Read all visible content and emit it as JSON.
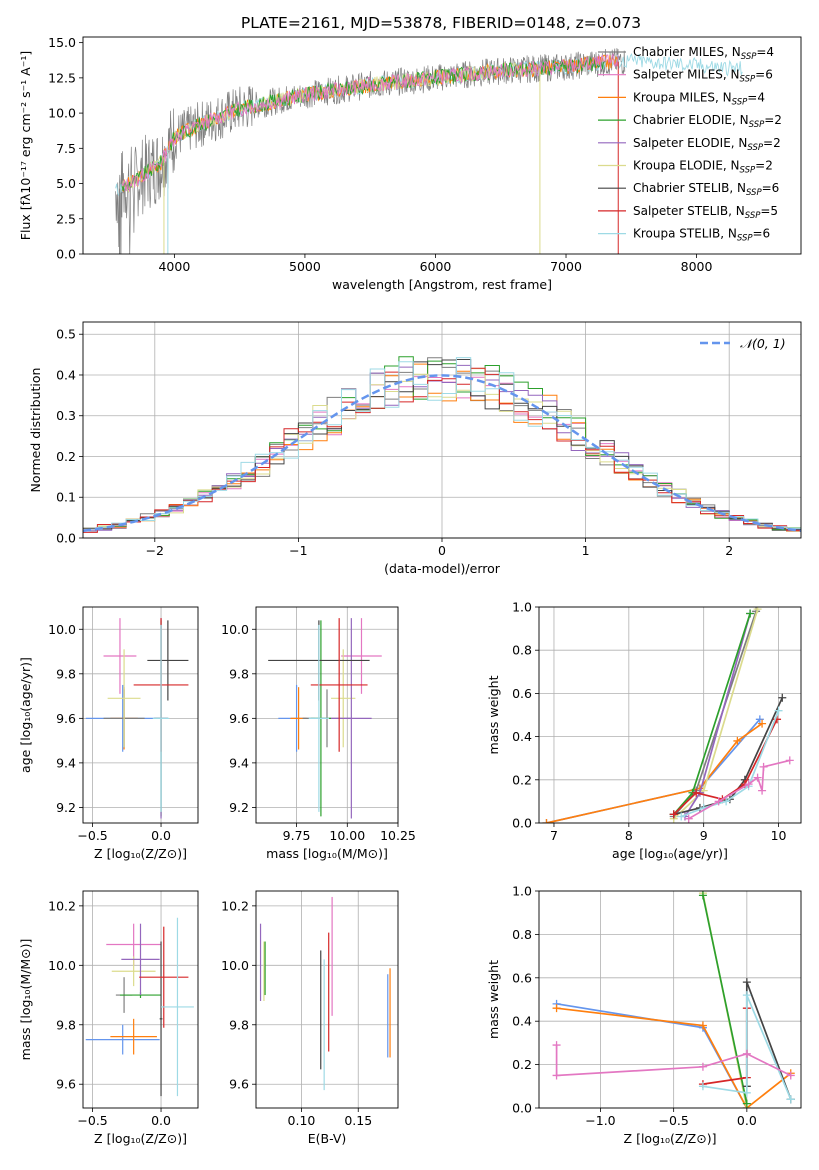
{
  "figure_title": "PLATE=2161, MJD=53878, FIBERID=0148, z=0.073",
  "model_colors": [
    "#7f7f7f",
    "#e377c2",
    "#ff7f0e",
    "#2ca02c",
    "#9467bd",
    "#dbdb8d",
    "#444444",
    "#d62728",
    "#9edae5"
  ],
  "chart_data": [
    {
      "id": "spectrum",
      "type": "line",
      "title": "PLATE=2161, MJD=53878, FIBERID=0148, z=0.073",
      "xlabel": "wavelength [Angstrom, rest frame]",
      "ylabel": "Flux [fλ10⁻¹⁷ erg cm⁻² s⁻¹ A⁻¹]",
      "xlim": [
        3300,
        8800
      ],
      "ylim": [
        0,
        15.4
      ],
      "xticks": [
        4000,
        5000,
        6000,
        7000,
        8000
      ],
      "yticks": [
        0.0,
        2.5,
        5.0,
        7.5,
        10.0,
        12.5,
        15.0
      ],
      "legend_position": "upper-right",
      "legend": [
        {
          "label": "Chabrier MILES, N",
          "sub": "SSP",
          "tail": "=4",
          "color": "#7f7f7f"
        },
        {
          "label": "Salpeter MILES, N",
          "sub": "SSP",
          "tail": "=6",
          "color": "#e377c2"
        },
        {
          "label": "Kroupa MILES, N",
          "sub": "SSP",
          "tail": "=4",
          "color": "#ff7f0e"
        },
        {
          "label": "Chabrier ELODIE, N",
          "sub": "SSP",
          "tail": "=2",
          "color": "#2ca02c"
        },
        {
          "label": "Salpeter ELODIE, N",
          "sub": "SSP",
          "tail": "=2",
          "color": "#9467bd"
        },
        {
          "label": "Kroupa ELODIE, N",
          "sub": "SSP",
          "tail": "=2",
          "color": "#dbdb8d"
        },
        {
          "label": "Chabrier STELIB, N",
          "sub": "SSP",
          "tail": "=6",
          "color": "#444444"
        },
        {
          "label": "Salpeter STELIB, N",
          "sub": "SSP",
          "tail": "=5",
          "color": "#d62728"
        },
        {
          "label": "Kroupa STELIB, N",
          "sub": "SSP",
          "tail": "=6",
          "color": "#9edae5"
        }
      ],
      "data_trend": {
        "x": [
          3550,
          3700,
          3900,
          4000,
          4200,
          4500,
          5000,
          5500,
          6000,
          6500,
          7000,
          7300,
          7500,
          7800,
          8100,
          8400,
          8800
        ],
        "y": [
          4.5,
          5.2,
          6.5,
          8.3,
          9.2,
          10.3,
          11.3,
          12.0,
          12.5,
          13.0,
          13.3,
          13.6,
          13.7,
          13.5,
          13.3,
          13.1,
          13.0
        ]
      }
    },
    {
      "id": "residuals",
      "type": "histogram",
      "xlabel": "(data-model)/error",
      "ylabel": "Normed distribution",
      "xlim": [
        -2.5,
        2.5
      ],
      "ylim": [
        0,
        0.53
      ],
      "xticks": [
        -2,
        -1,
        0,
        1,
        2
      ],
      "yticks": [
        0.0,
        0.1,
        0.2,
        0.3,
        0.4,
        0.5
      ],
      "legend_position": "upper-right",
      "reference_curve": {
        "label": "𝒩(0, 1)",
        "mean": 0,
        "sigma": 1,
        "color": "#6495ed"
      },
      "bin_width": 0.1
    },
    {
      "id": "age_vs_Z",
      "type": "errorbar",
      "xlabel": "Z [log₁₀(Z/Z⊙)]",
      "ylabel": "age  [log₁₀(age/yr)]",
      "xlim": [
        -0.57,
        0.27
      ],
      "ylim": [
        9.13,
        10.1
      ],
      "xticks": [
        -0.5,
        0.0
      ],
      "xticklabels": [
        "−0.5",
        "0.0"
      ],
      "yticks": [
        9.2,
        9.4,
        9.6,
        9.8,
        10.0
      ],
      "points": [
        {
          "x": -0.28,
          "y": 9.6,
          "xerr": 0.27,
          "yerr": 0.15,
          "color": "#6495ed"
        },
        {
          "x": -0.27,
          "y": 9.6,
          "xerr": 0.1,
          "yerr": 0.14,
          "color": "#ff7f0e"
        },
        {
          "x": -0.3,
          "y": 9.88,
          "xerr": 0.12,
          "yerr": 0.17,
          "color": "#e377c2"
        },
        {
          "x": -0.27,
          "y": 9.6,
          "xerr": 0.15,
          "yerr": 0.13,
          "color": "#7f7f7f"
        },
        {
          "x": -0.27,
          "y": 9.69,
          "xerr": 0.12,
          "yerr": 0.22,
          "color": "#dbdb8d"
        },
        {
          "x": 0.0,
          "y": 9.6,
          "xerr": 0.05,
          "yerr": 0.44,
          "color": "#2ca02c"
        },
        {
          "x": 0.0,
          "y": 9.6,
          "xerr": 0.05,
          "yerr": 0.45,
          "color": "#9467bd"
        },
        {
          "x": 0.05,
          "y": 9.86,
          "xerr": 0.15,
          "yerr": 0.18,
          "color": "#444444"
        },
        {
          "x": 0.0,
          "y": 9.75,
          "xerr": 0.2,
          "yerr": 0.3,
          "color": "#d62728"
        },
        {
          "x": 0.0,
          "y": 9.6,
          "xerr": 0.06,
          "yerr": 0.42,
          "color": "#9edae5"
        }
      ]
    },
    {
      "id": "age_vs_mass",
      "type": "errorbar",
      "xlabel": "mass [log₁₀(M/M⊙)]",
      "ylabel": "",
      "xlim": [
        9.55,
        10.25
      ],
      "ylim": [
        9.13,
        10.1
      ],
      "xticks": [
        9.75,
        10.0,
        10.25
      ],
      "xticklabels": [
        "9.75",
        "10.00",
        "10.25"
      ],
      "yticks": [
        9.2,
        9.4,
        9.6,
        9.8,
        10.0
      ],
      "points": [
        {
          "x": 9.75,
          "y": 9.6,
          "xerr": 0.09,
          "yerr": 0.15,
          "color": "#6495ed"
        },
        {
          "x": 9.76,
          "y": 9.6,
          "xerr": 0.04,
          "yerr": 0.14,
          "color": "#ff7f0e"
        },
        {
          "x": 10.07,
          "y": 9.88,
          "xerr": 0.1,
          "yerr": 0.17,
          "color": "#e377c2"
        },
        {
          "x": 9.9,
          "y": 9.6,
          "xerr": 0.12,
          "yerr": 0.13,
          "color": "#7f7f7f"
        },
        {
          "x": 9.98,
          "y": 9.69,
          "xerr": 0.06,
          "yerr": 0.22,
          "color": "#dbdb8d"
        },
        {
          "x": 9.87,
          "y": 9.6,
          "xerr": 0.05,
          "yerr": 0.44,
          "color": "#2ca02c"
        },
        {
          "x": 10.02,
          "y": 9.6,
          "xerr": 0.1,
          "yerr": 0.45,
          "color": "#9467bd"
        },
        {
          "x": 9.86,
          "y": 9.86,
          "xerr": 0.25,
          "yerr": 0.18,
          "color": "#444444"
        },
        {
          "x": 9.96,
          "y": 9.75,
          "xerr": 0.14,
          "yerr": 0.3,
          "color": "#d62728"
        },
        {
          "x": 9.86,
          "y": 9.6,
          "xerr": 0.05,
          "yerr": 0.42,
          "color": "#9edae5"
        }
      ]
    },
    {
      "id": "massweight_vs_age",
      "type": "line",
      "xlabel": "age  [log₁₀(age/yr)]",
      "ylabel": "mass weight",
      "xlim": [
        6.8,
        10.3
      ],
      "ylim": [
        0,
        1
      ],
      "xticks": [
        7,
        8,
        9,
        10
      ],
      "yticks": [
        0.0,
        0.2,
        0.4,
        0.6,
        0.8,
        1.0
      ],
      "series": [
        {
          "color": "#6495ed",
          "x": [
            6.9,
            8.95,
            9.75
          ],
          "y": [
            0.0,
            0.16,
            0.48
          ]
        },
        {
          "color": "#ff7f0e",
          "x": [
            6.9,
            8.95,
            9.45,
            9.78
          ],
          "y": [
            0.0,
            0.16,
            0.38,
            0.46
          ]
        },
        {
          "color": "#7f7f7f",
          "x": [
            8.6,
            8.9,
            9.7
          ],
          "y": [
            0.03,
            0.15,
            0.98
          ]
        },
        {
          "color": "#dbdb8d",
          "x": [
            8.6,
            9.0,
            9.72
          ],
          "y": [
            0.02,
            0.15,
            0.99
          ]
        },
        {
          "color": "#9467bd",
          "x": [
            8.75,
            8.95,
            9.62
          ],
          "y": [
            0.03,
            0.14,
            0.97
          ]
        },
        {
          "color": "#2ca02c",
          "x": [
            8.6,
            8.85,
            9.62
          ],
          "y": [
            0.04,
            0.14,
            0.97
          ]
        },
        {
          "color": "#444444",
          "x": [
            8.6,
            8.95,
            9.35,
            9.55,
            10.05
          ],
          "y": [
            0.04,
            0.07,
            0.11,
            0.2,
            0.58
          ]
        },
        {
          "color": "#d62728",
          "x": [
            8.6,
            8.9,
            9.25,
            9.55,
            9.98
          ],
          "y": [
            0.04,
            0.14,
            0.11,
            0.18,
            0.48
          ]
        },
        {
          "color": "#9edae5",
          "x": [
            8.7,
            9.0,
            9.3,
            9.6,
            10.0
          ],
          "y": [
            0.03,
            0.07,
            0.1,
            0.17,
            0.52
          ]
        },
        {
          "color": "#e377c2",
          "x": [
            8.8,
            9.2,
            9.6,
            9.72,
            9.78,
            9.8,
            10.15
          ],
          "y": [
            0.02,
            0.1,
            0.18,
            0.21,
            0.15,
            0.26,
            0.29
          ]
        }
      ]
    },
    {
      "id": "mass_vs_Z",
      "type": "errorbar",
      "xlabel": "Z [log₁₀(Z/Z⊙)]",
      "ylabel": "mass [log₁₀(M/M⊙)]",
      "xlim": [
        -0.57,
        0.27
      ],
      "ylim": [
        9.52,
        10.25
      ],
      "xticks": [
        -0.5,
        0.0
      ],
      "xticklabels": [
        "−0.5",
        "0.0"
      ],
      "yticks": [
        9.6,
        9.8,
        10.0,
        10.2
      ],
      "points": [
        {
          "x": -0.28,
          "y": 9.75,
          "xerr": 0.27,
          "yerr": 0.05,
          "color": "#6495ed"
        },
        {
          "x": -0.2,
          "y": 9.76,
          "xerr": 0.17,
          "yerr": 0.06,
          "color": "#ff7f0e"
        },
        {
          "x": -0.2,
          "y": 10.07,
          "xerr": 0.2,
          "yerr": 0.07,
          "color": "#e377c2"
        },
        {
          "x": -0.27,
          "y": 9.9,
          "xerr": 0.06,
          "yerr": 0.06,
          "color": "#7f7f7f"
        },
        {
          "x": -0.2,
          "y": 9.98,
          "xerr": 0.16,
          "yerr": 0.05,
          "color": "#dbdb8d"
        },
        {
          "x": -0.15,
          "y": 9.9,
          "xerr": 0.15,
          "yerr": 0.01,
          "color": "#2ca02c"
        },
        {
          "x": -0.15,
          "y": 10.02,
          "xerr": 0.14,
          "yerr": 0.12,
          "color": "#9467bd"
        },
        {
          "x": 0.0,
          "y": 9.82,
          "xerr": 0.01,
          "yerr": 0.26,
          "color": "#444444"
        },
        {
          "x": 0.02,
          "y": 9.96,
          "xerr": 0.18,
          "yerr": 0.17,
          "color": "#d62728"
        },
        {
          "x": 0.12,
          "y": 9.86,
          "xerr": 0.12,
          "yerr": 0.3,
          "color": "#9edae5"
        }
      ]
    },
    {
      "id": "mass_vs_ebv",
      "type": "errorbar",
      "xlabel": "E(B-V)",
      "ylabel": "",
      "xlim": [
        0.06,
        0.185
      ],
      "ylim": [
        9.52,
        10.25
      ],
      "xticks": [
        0.1,
        0.15
      ],
      "xticklabels": [
        "0.10",
        "0.15"
      ],
      "yticks": [
        9.6,
        9.8,
        10.0,
        10.2
      ],
      "points": [
        {
          "x": 0.064,
          "y": 10.01,
          "xerr": 0,
          "yerr": 0.13,
          "color": "#9467bd"
        },
        {
          "x": 0.067,
          "y": 9.98,
          "xerr": 0,
          "yerr": 0.1,
          "color": "#dbdb8d"
        },
        {
          "x": 0.068,
          "y": 9.99,
          "xerr": 0,
          "yerr": 0.09,
          "color": "#2ca02c"
        },
        {
          "x": 0.117,
          "y": 9.85,
          "xerr": 0,
          "yerr": 0.2,
          "color": "#444444"
        },
        {
          "x": 0.12,
          "y": 9.8,
          "xerr": 0,
          "yerr": 0.22,
          "color": "#9edae5"
        },
        {
          "x": 0.124,
          "y": 9.91,
          "xerr": 0,
          "yerr": 0.2,
          "color": "#d62728"
        },
        {
          "x": 0.127,
          "y": 10.03,
          "xerr": 0,
          "yerr": 0.2,
          "color": "#e377c2"
        },
        {
          "x": 0.178,
          "y": 9.84,
          "xerr": 0,
          "yerr": 0.15,
          "color": "#ff7f0e"
        },
        {
          "x": 0.176,
          "y": 9.83,
          "xerr": 0,
          "yerr": 0.14,
          "color": "#6495ed"
        }
      ]
    },
    {
      "id": "massweight_vs_Z",
      "type": "line",
      "xlabel": "Z [log₁₀(Z/Z⊙)]",
      "ylabel": "mass weight",
      "xlim": [
        -1.42,
        0.37
      ],
      "ylim": [
        0,
        1
      ],
      "xticks": [
        -1.0,
        -0.5,
        0.0
      ],
      "xticklabels": [
        "−1.0",
        "−0.5",
        "0.0"
      ],
      "yticks": [
        0.0,
        0.2,
        0.4,
        0.6,
        0.8,
        1.0
      ],
      "series": [
        {
          "color": "#6495ed",
          "x": [
            -1.3,
            -0.3,
            0.0
          ],
          "y": [
            0.48,
            0.37,
            0.0
          ]
        },
        {
          "color": "#ff7f0e",
          "x": [
            -1.3,
            -0.3,
            0.0,
            0.3
          ],
          "y": [
            0.46,
            0.38,
            0.0,
            0.16
          ]
        },
        {
          "color": "#dbdb8d",
          "x": [
            -0.3,
            0.0
          ],
          "y": [
            0.99,
            0.0
          ]
        },
        {
          "color": "#2ca02c",
          "x": [
            -0.3,
            0.0
          ],
          "y": [
            0.98,
            0.02
          ]
        },
        {
          "color": "#444444",
          "x": [
            0.0,
            0.0,
            0.3
          ],
          "y": [
            0.1,
            0.58,
            0.04
          ]
        },
        {
          "color": "#d62728",
          "x": [
            -0.3,
            0.0,
            0.0
          ],
          "y": [
            0.11,
            0.14,
            0.46
          ]
        },
        {
          "color": "#9edae5",
          "x": [
            -0.3,
            0.0,
            0.0,
            0.3
          ],
          "y": [
            0.1,
            0.07,
            0.52,
            0.04
          ]
        },
        {
          "color": "#e377c2",
          "x": [
            -1.3,
            -1.3,
            -0.3,
            0.0,
            0.3
          ],
          "y": [
            0.29,
            0.15,
            0.19,
            0.25,
            0.15
          ]
        }
      ]
    }
  ]
}
